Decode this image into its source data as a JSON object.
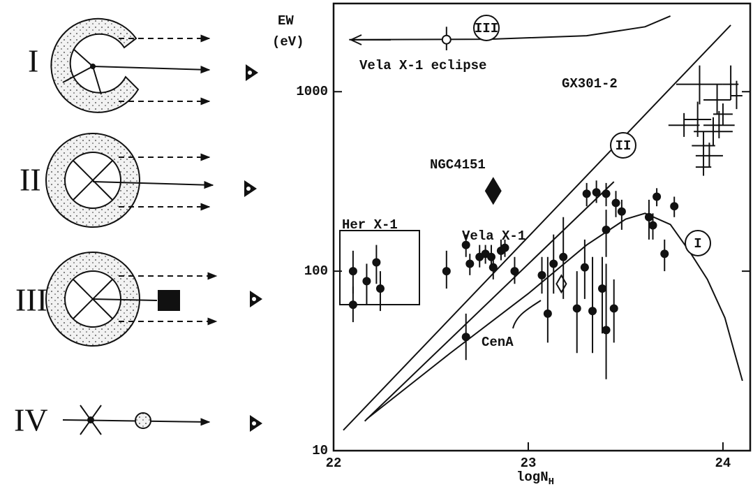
{
  "diagram": {
    "labels": [
      "I",
      "II",
      "III",
      "IV"
    ]
  },
  "chart_data": {
    "type": "scatter",
    "y_label": "EW",
    "y_label_unit": "(eV)",
    "x_label": "logN",
    "x_label_subscript": "H",
    "xlim": [
      22,
      24.14
    ],
    "xticks": [
      22,
      23,
      24
    ],
    "ylim": [
      10,
      3100
    ],
    "yticks": [
      10,
      100,
      1000
    ],
    "log_y": true,
    "series": [
      {
        "name": "Her X-1",
        "color": "#111",
        "marker": "dot",
        "x": [
          22.1,
          22.1,
          22.17,
          22.22,
          22.24
        ],
        "values": [
          100,
          65,
          88,
          112,
          80
        ],
        "ylow": [
          75,
          52,
          65,
          85,
          60
        ],
        "yhigh": [
          130,
          82,
          110,
          140,
          100
        ]
      },
      {
        "name": "Vela X-1",
        "color": "#111",
        "marker": "dot",
        "x": [
          22.58,
          22.68,
          22.7,
          22.75,
          22.78,
          22.81,
          22.82,
          22.86,
          22.88,
          22.93,
          22.68,
          23.07,
          23.1,
          23.13,
          23.18,
          23.25,
          23.29,
          23.33,
          23.38,
          23.4,
          23.44,
          23.3,
          23.35,
          23.4,
          23.45,
          23.48,
          23.4,
          23.62,
          23.64,
          23.66,
          23.7,
          23.75
        ],
        "values": [
          100,
          140,
          110,
          120,
          125,
          120,
          105,
          130,
          135,
          100,
          43,
          95,
          58,
          110,
          120,
          62,
          105,
          60,
          80,
          47,
          62,
          270,
          275,
          270,
          240,
          215,
          170,
          200,
          180,
          260,
          125,
          230
        ],
        "ylow": [
          80,
          120,
          95,
          105,
          110,
          105,
          90,
          115,
          120,
          85,
          32,
          75,
          40,
          75,
          70,
          35,
          70,
          35,
          45,
          25,
          40,
          230,
          240,
          230,
          200,
          170,
          120,
          150,
          150,
          230,
          100,
          200
        ],
        "yhigh": [
          130,
          160,
          125,
          140,
          140,
          140,
          125,
          150,
          150,
          120,
          58,
          120,
          120,
          160,
          200,
          100,
          150,
          120,
          120,
          110,
          90,
          310,
          320,
          310,
          280,
          250,
          220,
          250,
          210,
          290,
          150,
          260
        ]
      },
      {
        "name": "NGC4151",
        "color": "#111",
        "marker": "diamond",
        "x": [
          22.82
        ],
        "values": [
          280
        ]
      },
      {
        "name": "CenA",
        "color": "#111",
        "marker": "open-diamond",
        "x": [
          23.17
        ],
        "values": [
          85
        ]
      },
      {
        "name": "Vela X-1 eclipse",
        "color": "#111",
        "marker": "open-circle",
        "x": [
          22.58
        ],
        "values": [
          1950
        ],
        "ylow": [
          1700
        ],
        "yhigh": [
          2300
        ]
      },
      {
        "name": "GX301-2",
        "color": "#111",
        "marker": "cross",
        "x": [
          23.8,
          23.87,
          23.9,
          23.93,
          23.95,
          23.9,
          23.88,
          23.97,
          24.0,
          24.04,
          24.07,
          23.98
        ],
        "values": [
          650,
          700,
          500,
          440,
          600,
          380,
          1100,
          900,
          750,
          1100,
          950,
          650
        ],
        "ylow": [
          560,
          560,
          420,
          380,
          500,
          340,
          850,
          750,
          650,
          900,
          800,
          550
        ],
        "yhigh": [
          760,
          880,
          600,
          520,
          720,
          420,
          1400,
          1100,
          860,
          1400,
          1150,
          780
        ],
        "xlow": [
          23.72,
          23.8,
          23.84,
          23.86,
          23.85,
          23.86,
          23.76,
          23.9,
          23.95,
          24.0,
          24.04,
          23.9
        ],
        "xhigh": [
          23.88,
          23.94,
          23.96,
          24.0,
          24.05,
          23.94,
          24.0,
          24.04,
          24.05,
          24.08,
          24.1,
          24.06
        ]
      }
    ],
    "curves": [
      {
        "name": "I",
        "x": [
          22.17,
          22.6,
          23.0,
          23.3,
          23.5,
          23.6,
          23.73,
          23.83,
          23.92,
          24.01,
          24.06,
          24.1
        ],
        "values": [
          15,
          35,
          75,
          140,
          195,
          210,
          182,
          128,
          90,
          55,
          35,
          24.5
        ]
      },
      {
        "name": "II",
        "x": [
          22.05,
          24.04,
          null,
          22.16,
          23.44
        ],
        "values": [
          13,
          2350,
          null,
          14.6,
          315
        ]
      },
      {
        "name": "III",
        "x": [
          22.08,
          22.8,
          23.3,
          23.6,
          23.73
        ],
        "values": [
          1950,
          1960,
          2050,
          2300,
          2640
        ]
      }
    ]
  }
}
